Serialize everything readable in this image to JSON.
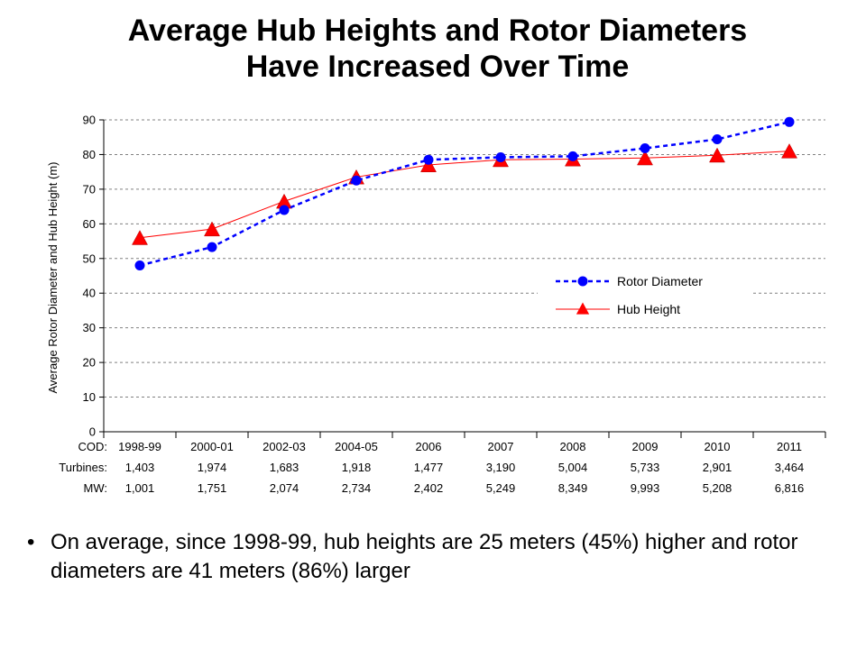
{
  "page": {
    "title_line1": "Average Hub Heights and Rotor Diameters",
    "title_line2": "Have Increased Over Time",
    "bullet": "On average, since 1998-99, hub heights are 25 meters (45%) higher and rotor diameters are 41 meters (86%) larger"
  },
  "chart_data": {
    "type": "line",
    "ylabel": "Average Rotor Diameter and Hub Height (m)",
    "ylim": [
      0,
      90
    ],
    "yticks": [
      0,
      10,
      20,
      30,
      40,
      50,
      60,
      70,
      80,
      90
    ],
    "grid": true,
    "legend_position": "center-right",
    "categories": [
      "1998-99",
      "2000-01",
      "2002-03",
      "2004-05",
      "2006",
      "2007",
      "2008",
      "2009",
      "2010",
      "2011"
    ],
    "series": [
      {
        "name": "Rotor Diameter",
        "color": "#0000ff",
        "marker": "circle",
        "line_style": "dashed",
        "values": [
          48,
          53.3,
          64,
          72.5,
          78.5,
          79.2,
          79.5,
          81.8,
          84.4,
          89.4
        ]
      },
      {
        "name": "Hub Height",
        "color": "#ff0000",
        "marker": "triangle",
        "line_style": "solid",
        "values": [
          56,
          58.5,
          66.5,
          73.5,
          77,
          78.5,
          78.7,
          79,
          79.8,
          81
        ]
      }
    ],
    "table": {
      "row_labels": [
        "COD:",
        "Turbines:",
        "MW:"
      ],
      "turbines": [
        "1,403",
        "1,974",
        "1,683",
        "1,918",
        "1,477",
        "3,190",
        "5,004",
        "5,733",
        "2,901",
        "3,464"
      ],
      "mw": [
        "1,001",
        "1,751",
        "2,074",
        "2,734",
        "2,402",
        "5,249",
        "8,349",
        "9,993",
        "5,208",
        "6,816"
      ]
    }
  }
}
